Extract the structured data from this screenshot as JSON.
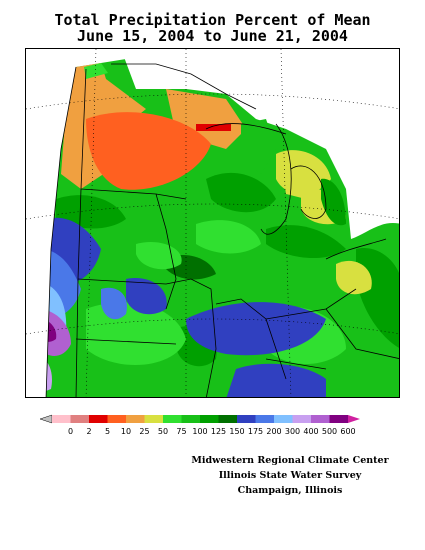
{
  "title": {
    "line1": "Total Precipitation Percent of Mean",
    "line2": "June 15, 2004 to June 21, 2004"
  },
  "legend": {
    "labels": [
      "0",
      "2",
      "5",
      "10",
      "25",
      "50",
      "75",
      "100",
      "125",
      "150",
      "175",
      "200",
      "300",
      "400",
      "500",
      "600"
    ],
    "colors": [
      "#ffc0cb",
      "#e08080",
      "#e00000",
      "#ff6020",
      "#f0a040",
      "#d8e040",
      "#30e030",
      "#18c018",
      "#00a000",
      "#007000",
      "#3040c0",
      "#4a78e8",
      "#80c0ff",
      "#c8a0f0",
      "#b060d0",
      "#800080",
      "#d020a0"
    ],
    "left_arrow_color": "#c0c0c0"
  },
  "credits": {
    "line1": "Midwestern Regional Climate Center",
    "line2": "Illinois State Water Survey",
    "line3": "Champaign, Illinois"
  }
}
